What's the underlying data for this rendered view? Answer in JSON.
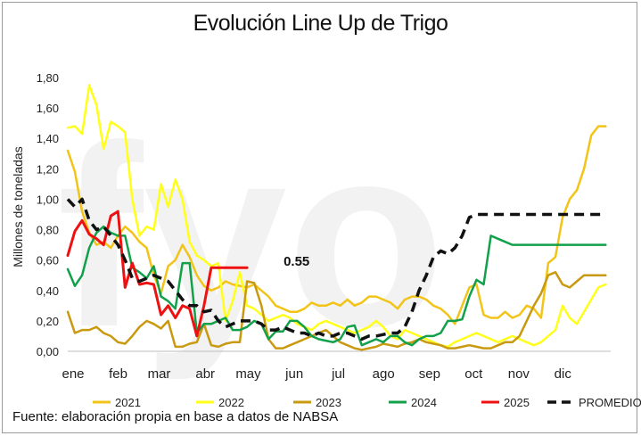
{
  "title": "Evolución Line Up de Trigo",
  "source": "Fuente: elaboración propia en base a datos de NABSA",
  "watermark": "fyo",
  "chart_data": {
    "type": "line",
    "ylabel": "Millones de toneladas",
    "xlabel": "",
    "ylim": [
      0,
      1.8
    ],
    "ytick_values": [
      0,
      0.2,
      0.4,
      0.6,
      0.8,
      1.0,
      1.2,
      1.4,
      1.6,
      1.8
    ],
    "ytick_labels": [
      "0,00",
      "0,20",
      "0,40",
      "0,60",
      "0,80",
      "1,00",
      "1,20",
      "1,40",
      "1,60",
      "1,80"
    ],
    "xlim": [
      0,
      53
    ],
    "x_unit": "week of year",
    "month_ticks": [
      {
        "label": "ene",
        "week": 0
      },
      {
        "label": "feb",
        "week": 4.4
      },
      {
        "label": "mar",
        "week": 8.4
      },
      {
        "label": "abr",
        "week": 12.9
      },
      {
        "label": "may",
        "week": 17.1
      },
      {
        "label": "jun",
        "week": 21.6
      },
      {
        "label": "jul",
        "week": 25.9
      },
      {
        "label": "ago",
        "week": 30.3
      },
      {
        "label": "sep",
        "week": 34.8
      },
      {
        "label": "oct",
        "week": 39.1
      },
      {
        "label": "nov",
        "week": 43.5
      },
      {
        "label": "dic",
        "week": 47.8
      }
    ],
    "grid": false,
    "legend_position": "bottom",
    "annotations": [
      {
        "text": "0.55",
        "x": 19.5,
        "y": 0.55
      }
    ],
    "series": [
      {
        "name": "2021",
        "color": "#f2c418",
        "dashed": false,
        "width": 2.5,
        "x": [
          0,
          0.7,
          1.4,
          2.1,
          2.8,
          3.5,
          4.2,
          4.9,
          5.6,
          6.3,
          7,
          7.7,
          8.4,
          9.1,
          9.8,
          10.5,
          11.2,
          11.9,
          12.6,
          13.3,
          14,
          14.7,
          15.4,
          16.1,
          16.8,
          17.5,
          18.2,
          18.9,
          19.6,
          20.3,
          21,
          21.7,
          22.4,
          23.1,
          23.8,
          24.5,
          25.2,
          25.9,
          26.6,
          27.3,
          28,
          28.7,
          29.4,
          30.1,
          30.8,
          31.5,
          32.2,
          32.9,
          33.6,
          34.3,
          35,
          35.7,
          36.4,
          37.1,
          37.8,
          38.5,
          39.2,
          39.9,
          40.6,
          41.3,
          42,
          42.7,
          43.4,
          44.1,
          44.8,
          45.5,
          46.2,
          46.9,
          47.6,
          48.3,
          49,
          49.7,
          50.4,
          51.1,
          51.8,
          52.5
        ],
        "y": [
          1.32,
          1.18,
          0.92,
          0.78,
          0.7,
          0.72,
          0.68,
          0.76,
          0.82,
          0.78,
          0.72,
          0.68,
          0.5,
          0.38,
          0.56,
          0.6,
          0.7,
          0.62,
          0.5,
          0.43,
          0.4,
          0.42,
          0.46,
          0.44,
          0.43,
          0.42,
          0.44,
          0.4,
          0.36,
          0.3,
          0.28,
          0.26,
          0.26,
          0.28,
          0.32,
          0.3,
          0.3,
          0.32,
          0.3,
          0.34,
          0.3,
          0.32,
          0.36,
          0.36,
          0.34,
          0.32,
          0.28,
          0.34,
          0.36,
          0.36,
          0.34,
          0.3,
          0.28,
          0.24,
          0.18,
          0.3,
          0.42,
          0.44,
          0.24,
          0.22,
          0.22,
          0.26,
          0.22,
          0.24,
          0.3,
          0.28,
          0.22,
          0.58,
          0.62,
          0.88,
          1.0,
          1.06,
          1.2,
          1.42,
          1.48,
          1.48
        ]
      },
      {
        "name": "2022",
        "color": "#ffff1a",
        "dashed": false,
        "width": 2.5,
        "x": [
          0,
          0.7,
          1.4,
          2.1,
          2.8,
          3.5,
          4.2,
          4.9,
          5.6,
          6.3,
          7,
          7.7,
          8.4,
          9.1,
          9.8,
          10.5,
          11.2,
          11.9,
          12.6,
          13.3,
          14,
          14.7,
          15.4,
          16.1,
          16.8,
          17.5,
          18.2,
          18.9,
          19.6,
          20.3,
          21,
          21.7,
          22.4,
          23.1,
          23.8,
          24.5,
          25.2,
          25.9,
          26.6,
          27.3,
          28,
          28.7,
          29.4,
          30.1,
          30.8,
          31.5,
          32.2,
          32.9,
          33.6,
          34.3,
          35,
          35.7,
          36.4,
          37.1,
          37.8,
          38.5,
          39.2,
          39.9,
          40.6,
          41.3,
          42,
          42.7,
          43.4,
          44.1,
          44.8,
          45.5,
          46.2,
          46.9,
          47.6,
          48.3,
          49,
          49.7,
          50.4,
          51.1,
          51.8,
          52.5
        ],
        "y": [
          1.47,
          1.48,
          1.43,
          1.75,
          1.62,
          1.33,
          1.51,
          1.48,
          1.44,
          1.0,
          0.76,
          0.82,
          0.8,
          1.1,
          0.95,
          1.13,
          1.0,
          0.72,
          0.63,
          0.6,
          0.56,
          0.58,
          0.2,
          0.33,
          0.52,
          0.3,
          0.28,
          0.24,
          0.2,
          0.22,
          0.24,
          0.22,
          0.18,
          0.16,
          0.14,
          0.18,
          0.2,
          0.18,
          0.16,
          0.14,
          0.12,
          0.14,
          0.16,
          0.2,
          0.16,
          0.1,
          0.08,
          0.14,
          0.12,
          0.1,
          0.08,
          0.06,
          0.04,
          0.03,
          0.06,
          0.08,
          0.1,
          0.12,
          0.1,
          0.08,
          0.06,
          0.08,
          0.1,
          0.08,
          0.06,
          0.04,
          0.06,
          0.1,
          0.14,
          0.3,
          0.22,
          0.18,
          0.26,
          0.34,
          0.42,
          0.44
        ]
      },
      {
        "name": "2023",
        "color": "#c9990f",
        "dashed": false,
        "width": 2.5,
        "x": [
          0,
          0.7,
          1.4,
          2.1,
          2.8,
          3.5,
          4.2,
          4.9,
          5.6,
          6.3,
          7,
          7.7,
          8.4,
          9.1,
          9.8,
          10.5,
          11.2,
          11.9,
          12.6,
          13.3,
          14,
          14.7,
          15.4,
          16.1,
          16.8,
          17.5,
          18.2,
          18.9,
          19.6,
          20.3,
          21,
          21.7,
          22.4,
          23.1,
          23.8,
          24.5,
          25.2,
          25.9,
          26.6,
          27.3,
          28,
          28.7,
          29.4,
          30.1,
          30.8,
          31.5,
          32.2,
          32.9,
          33.6,
          34.3,
          35,
          35.7,
          36.4,
          37.1,
          37.8,
          38.5,
          39.2,
          39.9,
          40.6,
          41.3,
          42,
          42.7,
          43.4,
          44.1,
          44.8,
          45.5,
          46.2,
          46.9,
          47.6,
          48.3,
          49,
          49.7,
          50.4,
          51.1,
          51.8,
          52.5
        ],
        "y": [
          0.26,
          0.12,
          0.14,
          0.14,
          0.16,
          0.12,
          0.1,
          0.06,
          0.05,
          0.1,
          0.16,
          0.2,
          0.18,
          0.15,
          0.2,
          0.03,
          0.03,
          0.05,
          0.06,
          0.18,
          0.04,
          0.03,
          0.05,
          0.06,
          0.06,
          0.46,
          0.45,
          0.3,
          0.08,
          0.02,
          0.02,
          0.04,
          0.06,
          0.08,
          0.1,
          0.12,
          0.14,
          0.1,
          0.06,
          0.04,
          0.02,
          0.01,
          0.02,
          0.03,
          0.05,
          0.04,
          0.03,
          0.05,
          0.06,
          0.08,
          0.06,
          0.05,
          0.04,
          0.02,
          0.02,
          0.03,
          0.04,
          0.03,
          0.02,
          0.02,
          0.04,
          0.06,
          0.06,
          0.1,
          0.2,
          0.3,
          0.38,
          0.5,
          0.52,
          0.44,
          0.42,
          0.46,
          0.5,
          0.5,
          0.5,
          0.5
        ]
      },
      {
        "name": "2024",
        "color": "#12a04a",
        "dashed": false,
        "width": 2.5,
        "x": [
          0,
          0.7,
          1.4,
          2.1,
          2.8,
          3.5,
          4.2,
          4.9,
          5.6,
          6.3,
          7,
          7.7,
          8.4,
          9.1,
          9.8,
          10.5,
          11.2,
          11.9,
          12.6,
          13.3,
          14,
          14.7,
          15.4,
          16.1,
          16.8,
          17.5,
          18.2,
          18.9,
          19.6,
          20.3,
          21,
          21.7,
          22.4,
          23.1,
          23.8,
          24.5,
          25.2,
          25.9,
          26.6,
          27.3,
          28,
          28.7,
          29.4,
          30.1,
          30.8,
          31.5,
          32.2,
          32.9,
          33.6,
          34.3,
          35,
          35.7,
          36.4,
          37.1,
          37.8,
          38.5,
          39.2,
          39.9,
          40.6,
          41.3,
          42,
          42.7,
          43.4,
          44.1,
          44.8,
          45.5,
          46.2,
          46.9,
          47.6,
          48.3,
          49,
          49.7,
          50.4,
          51.1,
          51.8,
          52.5
        ],
        "y": [
          0.54,
          0.43,
          0.5,
          0.68,
          0.78,
          0.82,
          0.78,
          0.76,
          0.76,
          0.55,
          0.52,
          0.48,
          0.56,
          0.36,
          0.33,
          0.28,
          0.58,
          0.58,
          0.12,
          0.18,
          0.18,
          0.2,
          0.22,
          0.14,
          0.14,
          0.16,
          0.2,
          0.18,
          0.08,
          0.13,
          0.13,
          0.2,
          0.2,
          0.16,
          0.1,
          0.08,
          0.07,
          0.06,
          0.08,
          0.16,
          0.17,
          0.04,
          0.06,
          0.08,
          0.06,
          0.1,
          0.1,
          0.06,
          0.04,
          0.08,
          0.1,
          0.1,
          0.12,
          0.2,
          0.2,
          0.21,
          0.36,
          0.47,
          0.44,
          0.76,
          0.74,
          0.72,
          0.7,
          0.7,
          0.7,
          0.7,
          0.7,
          0.7,
          0.7,
          0.7,
          0.7,
          0.7,
          0.7,
          0.7,
          0.7,
          0.7
        ]
      },
      {
        "name": "2025",
        "color": "#ee1111",
        "dashed": false,
        "width": 3,
        "x": [
          0,
          0.7,
          1.4,
          2.1,
          2.8,
          3.5,
          4.2,
          4.9,
          5.6,
          6.3,
          7,
          7.7,
          8.4,
          9.1,
          9.8,
          10.5,
          11.2,
          11.9,
          12.6,
          13.3,
          14,
          14.7,
          15.4,
          16.1,
          16.8,
          17.5
        ],
        "y": [
          0.63,
          0.79,
          0.86,
          0.77,
          0.74,
          0.7,
          0.89,
          0.92,
          0.42,
          0.58,
          0.44,
          0.45,
          0.44,
          0.24,
          0.3,
          0.22,
          0.3,
          0.28,
          0.1,
          0.3,
          0.55,
          0.55,
          0.55,
          0.55,
          0.55,
          0.55
        ]
      },
      {
        "name": "PROMEDIO",
        "color": "#111111",
        "dashed": true,
        "width": 3.5,
        "x": [
          0,
          0.7,
          1.4,
          2.1,
          2.8,
          3.5,
          4.2,
          4.9,
          5.6,
          6.3,
          7,
          7.7,
          8.4,
          9.1,
          9.8,
          10.5,
          11.2,
          11.9,
          12.6,
          13.3,
          14,
          14.7,
          15.4,
          16.1,
          16.8,
          17.5,
          18.2,
          18.9,
          19.6,
          20.3,
          21,
          21.7,
          22.4,
          23.1,
          23.8,
          24.5,
          25.2,
          25.9,
          26.6,
          27.3,
          28,
          28.7,
          29.4,
          30.1,
          30.8,
          31.5,
          32.2,
          32.9,
          33.6,
          34.3,
          35,
          35.7,
          36.4,
          37.1,
          37.8,
          38.5,
          39.2,
          39.9,
          40.6,
          41.3,
          42,
          42.7,
          43.4,
          44.1,
          44.8,
          45.5,
          46.2,
          46.9,
          47.6,
          48.3,
          49,
          49.7,
          50.4,
          51.1,
          51.8,
          52.5
        ],
        "y": [
          1.0,
          0.95,
          1.0,
          0.86,
          0.8,
          0.82,
          0.76,
          0.7,
          0.6,
          0.48,
          0.46,
          0.48,
          0.5,
          0.48,
          0.46,
          0.4,
          0.34,
          0.3,
          0.3,
          0.26,
          0.27,
          0.2,
          0.16,
          0.18,
          0.2,
          0.2,
          0.2,
          0.18,
          0.14,
          0.14,
          0.16,
          0.14,
          0.12,
          0.12,
          0.1,
          0.12,
          0.1,
          0.1,
          0.12,
          0.12,
          0.1,
          0.08,
          0.1,
          0.1,
          0.11,
          0.12,
          0.12,
          0.16,
          0.26,
          0.4,
          0.5,
          0.62,
          0.66,
          0.64,
          0.68,
          0.76,
          0.88,
          0.9,
          0.9,
          0.9,
          0.9,
          0.9,
          0.9,
          0.9,
          0.9,
          0.9,
          0.9,
          0.9,
          0.9,
          0.9,
          0.9,
          0.9,
          0.9,
          0.9,
          0.9,
          0.9
        ]
      }
    ]
  }
}
